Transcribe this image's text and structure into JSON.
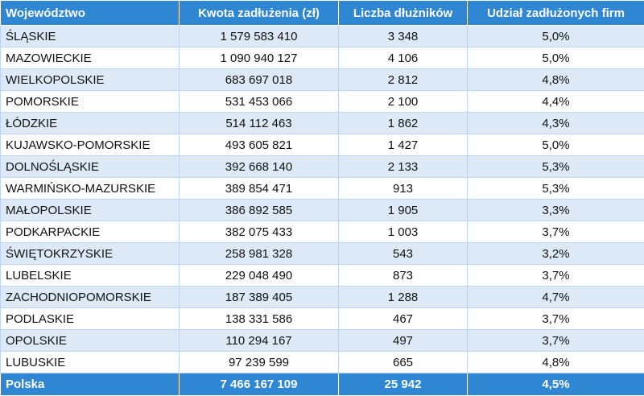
{
  "table": {
    "header": [
      "Województwo",
      "Kwota zadłużenia (zł)",
      "Liczba dłużników",
      "Udział zadłużonych firm"
    ],
    "rows": [
      [
        "ŚLĄSKIE",
        "1 579 583 410",
        "3 348",
        "5,0%"
      ],
      [
        "MAZOWIECKIE",
        "1 090 940 127",
        "4 106",
        "5,0%"
      ],
      [
        "WIELKOPOLSKIE",
        "683 697 018",
        "2 812",
        "4,8%"
      ],
      [
        "POMORSKIE",
        "531 453 066",
        "2 100",
        "4,4%"
      ],
      [
        "ŁÓDZKIE",
        "514 112 463",
        "1 862",
        "4,3%"
      ],
      [
        "KUJAWSKO-POMORSKIE",
        "493 605 821",
        "1 427",
        "5,0%"
      ],
      [
        "DOLNOŚLĄSKIE",
        "392 668 140",
        "2 133",
        "5,3%"
      ],
      [
        "WARMIŃSKO-MAZURSKIE",
        "389 854 471",
        "913",
        "5,3%"
      ],
      [
        "MAŁOPOLSKIE",
        "386 892 585",
        "1 905",
        "3,3%"
      ],
      [
        "PODKARPACKIE",
        "382 075 433",
        "1 003",
        "3,7%"
      ],
      [
        "ŚWIĘTOKRZYSKIE",
        "258 981 328",
        "543",
        "3,2%"
      ],
      [
        "LUBELSKIE",
        "229 048 490",
        "873",
        "3,7%"
      ],
      [
        "ZACHODNIOPOMORSKIE",
        "187 389 405",
        "1 288",
        "4,7%"
      ],
      [
        "PODLASKIE",
        "138 331 586",
        "467",
        "3,7%"
      ],
      [
        "OPOLSKIE",
        "110 294 167",
        "497",
        "3,7%"
      ],
      [
        "LUBUSKIE",
        "97 239 599",
        "665",
        "4,8%"
      ]
    ],
    "footer": [
      "Polska",
      "7 466 167 109",
      "25 942",
      "4,5%"
    ]
  }
}
